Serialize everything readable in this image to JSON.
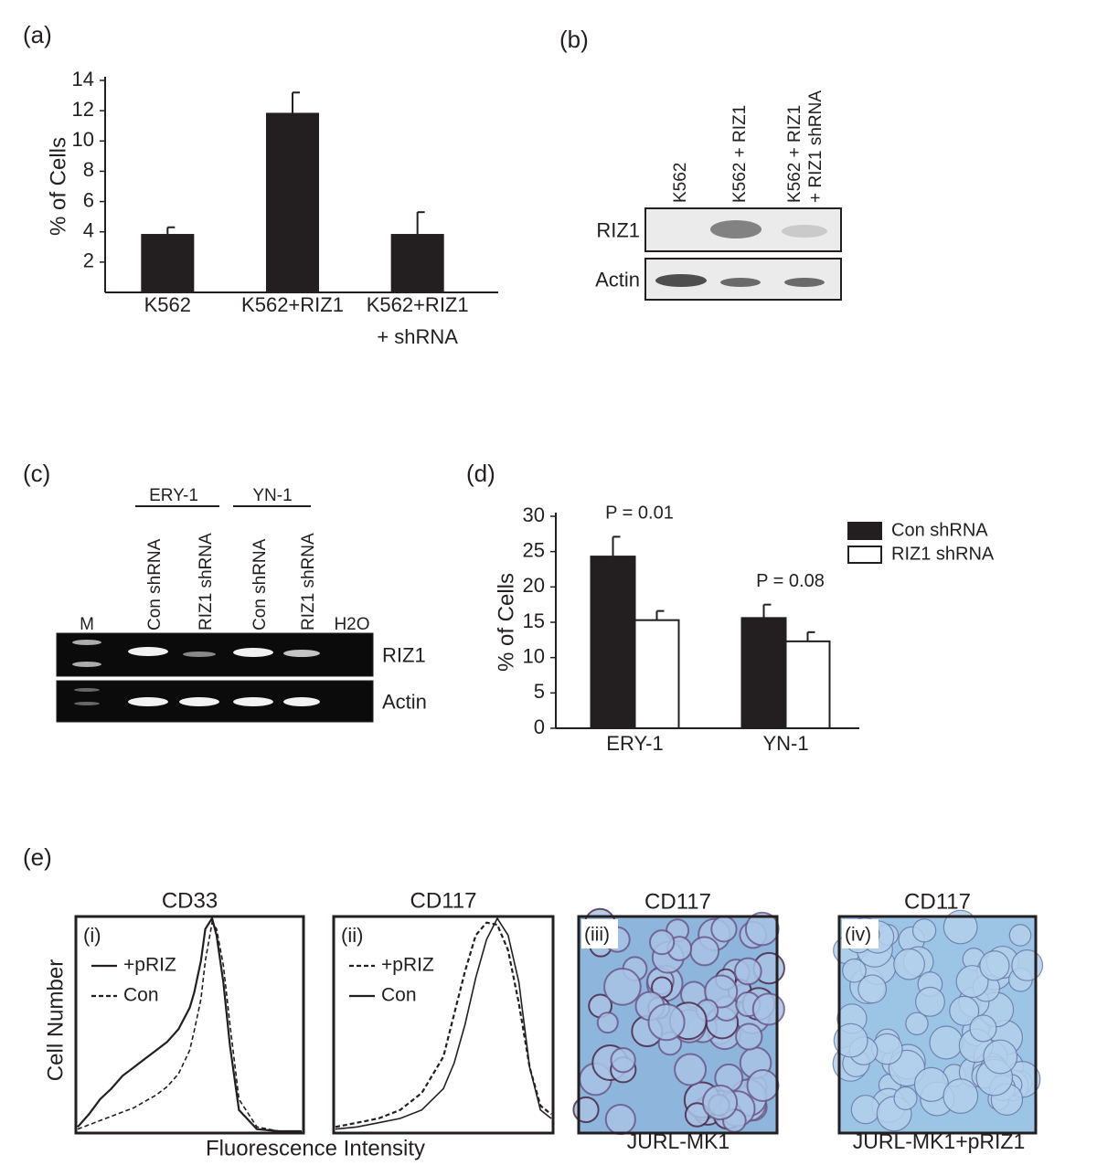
{
  "figure": {
    "panel_labels": [
      "(a)",
      "(b)",
      "(c)",
      "(d)",
      "(e)"
    ]
  },
  "chart_data": [
    {
      "type": "bar",
      "ylabel": "% of Cells",
      "categories": [
        "K562",
        "K562+RIZ1",
        "K562+RIZ1\n+ shRNA"
      ],
      "values": [
        3.8,
        11.8,
        3.8
      ],
      "errors": [
        0.5,
        1.4,
        1.5
      ],
      "color": "#231f20",
      "ylim": [
        0,
        14
      ],
      "yticks": [
        2,
        4,
        6,
        8,
        10,
        12,
        14
      ]
    },
    {
      "type": "bar",
      "ylabel": "% of Cells",
      "categories": [
        "ERY-1",
        "YN-1"
      ],
      "series": [
        {
          "name": "Con shRNA",
          "color": "#231f20",
          "values": [
            24.3,
            15.6
          ],
          "errors": [
            2.8,
            1.9
          ]
        },
        {
          "name": "RIZ1 shRNA",
          "color": "#ffffff",
          "values": [
            15.3,
            12.3
          ],
          "errors": [
            1.3,
            1.3
          ]
        }
      ],
      "annotations": [
        "P = 0.01",
        "P = 0.08"
      ],
      "legend": "upper right",
      "ylim": [
        0,
        30
      ],
      "yticks": [
        0,
        5,
        10,
        15,
        20,
        25,
        30
      ]
    },
    {
      "type": "line",
      "title": "CD33",
      "panel_label": "(i)",
      "ylabel": "Cell Number",
      "xlabel": "Fluorescence Intensity",
      "x": [
        0,
        5,
        10,
        15,
        20,
        25,
        30,
        35,
        40,
        45,
        50,
        52,
        55,
        57,
        60,
        62,
        65,
        68,
        72,
        80,
        90,
        100
      ],
      "series": [
        {
          "name": "+pRIZ",
          "color": "#231f20",
          "dash": "solid",
          "values": [
            2,
            8,
            15,
            20,
            26,
            30,
            34,
            38,
            42,
            48,
            58,
            65,
            80,
            95,
            100,
            92,
            70,
            40,
            10,
            1,
            0,
            0
          ]
        },
        {
          "name": "Con",
          "color": "#231f20",
          "dash": "dashed",
          "values": [
            1,
            3,
            5,
            7,
            9,
            11,
            14,
            17,
            21,
            27,
            38,
            47,
            62,
            80,
            98,
            95,
            78,
            50,
            15,
            2,
            0,
            0
          ]
        }
      ],
      "xlim": [
        0,
        100
      ],
      "ylim": [
        0,
        100
      ],
      "legend": "upper left"
    },
    {
      "type": "line",
      "title": "CD117",
      "panel_label": "(ii)",
      "x": [
        0,
        10,
        20,
        30,
        40,
        50,
        55,
        60,
        65,
        70,
        75,
        80,
        85,
        90,
        95,
        100
      ],
      "series": [
        {
          "name": "+pRIZ",
          "color": "#231f20",
          "dash": "dashed",
          "values": [
            2,
            4,
            6,
            10,
            18,
            35,
            55,
            75,
            92,
            98,
            97,
            85,
            60,
            30,
            12,
            8
          ]
        },
        {
          "name": "Con",
          "color": "#231f20",
          "dash": "solid",
          "values": [
            1,
            2,
            4,
            6,
            10,
            20,
            32,
            50,
            72,
            90,
            100,
            92,
            70,
            30,
            10,
            6
          ]
        }
      ],
      "xlim": [
        0,
        100
      ],
      "ylim": [
        0,
        100
      ],
      "legend": "upper left"
    }
  ],
  "blot_b": {
    "lanes": [
      "K562",
      "K562 + RIZ1",
      "K562 + RIZ1\n+ RIZ1 shRNA"
    ],
    "rows": [
      "RIZ1",
      "Actin"
    ]
  },
  "gel_c": {
    "groups": [
      "ERY-1",
      "YN-1"
    ],
    "lanes": [
      "M",
      "Con shRNA",
      "RIZ1 shRNA",
      "Con shRNA",
      "RIZ1 shRNA",
      "H2O"
    ],
    "rows": [
      "RIZ1",
      "Actin"
    ]
  },
  "micrographs": [
    {
      "title": "CD117",
      "label": "(iii)",
      "caption": "JURL-MK1"
    },
    {
      "title": "CD117",
      "label": "(iv)",
      "caption": "JURL-MK1+pRIZ1"
    }
  ]
}
